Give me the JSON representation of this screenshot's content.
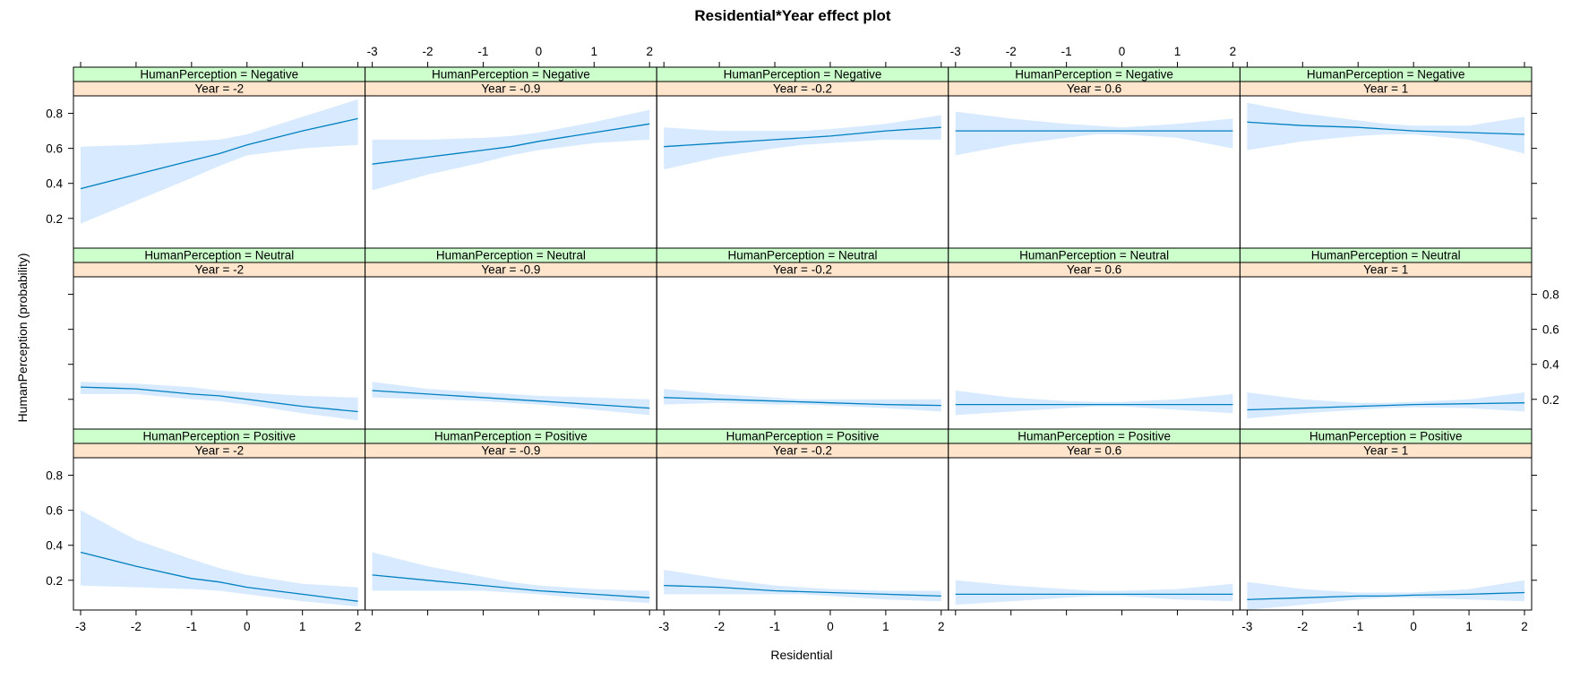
{
  "chart_data": {
    "type": "line",
    "title": "Residential*Year effect plot",
    "xlabel": "Residential",
    "ylabel": "HumanPerception (probability)",
    "xlim": [
      -3,
      2
    ],
    "ylim": [
      0.03,
      0.9
    ],
    "x_ticks": [
      "-3",
      "-2",
      "-1",
      "0",
      "1",
      "2"
    ],
    "y_ticks": [
      "0.2",
      "0.4",
      "0.6",
      "0.8"
    ],
    "x_values": [
      -3,
      -2,
      -1,
      -0.5,
      0,
      1,
      2
    ],
    "grid": false,
    "legend": "none",
    "colors": {
      "line": "#0080c0",
      "band": "#d8eaff",
      "strip_outer": "#ccffcc",
      "strip_inner": "#ffe5cc"
    },
    "row_strips": [
      "HumanPerception = Negative",
      "HumanPerception = Neutral",
      "HumanPerception = Positive"
    ],
    "col_strips": [
      "Year = -2",
      "Year = -0.9",
      "Year = -0.2",
      "Year = 0.6",
      "Year = 1"
    ],
    "panels": [
      {
        "row": 0,
        "col": 0,
        "fit": [
          0.37,
          0.45,
          0.53,
          0.57,
          0.62,
          0.7,
          0.77
        ],
        "lower": [
          0.17,
          0.3,
          0.43,
          0.5,
          0.56,
          0.6,
          0.62
        ],
        "upper": [
          0.61,
          0.62,
          0.64,
          0.65,
          0.68,
          0.78,
          0.88
        ]
      },
      {
        "row": 0,
        "col": 1,
        "fit": [
          0.51,
          0.55,
          0.59,
          0.61,
          0.64,
          0.69,
          0.74
        ],
        "lower": [
          0.36,
          0.45,
          0.52,
          0.56,
          0.59,
          0.63,
          0.65
        ],
        "upper": [
          0.65,
          0.65,
          0.66,
          0.67,
          0.69,
          0.75,
          0.82
        ]
      },
      {
        "row": 0,
        "col": 2,
        "fit": [
          0.61,
          0.63,
          0.65,
          0.66,
          0.67,
          0.7,
          0.72
        ],
        "lower": [
          0.48,
          0.55,
          0.6,
          0.62,
          0.63,
          0.65,
          0.65
        ],
        "upper": [
          0.72,
          0.7,
          0.7,
          0.7,
          0.71,
          0.74,
          0.79
        ]
      },
      {
        "row": 0,
        "col": 3,
        "fit": [
          0.7,
          0.7,
          0.7,
          0.7,
          0.7,
          0.7,
          0.7
        ],
        "lower": [
          0.56,
          0.62,
          0.66,
          0.68,
          0.68,
          0.66,
          0.6
        ],
        "upper": [
          0.81,
          0.77,
          0.74,
          0.73,
          0.72,
          0.74,
          0.77
        ]
      },
      {
        "row": 0,
        "col": 4,
        "fit": [
          0.75,
          0.73,
          0.72,
          0.71,
          0.7,
          0.69,
          0.68
        ],
        "lower": [
          0.59,
          0.64,
          0.67,
          0.68,
          0.68,
          0.65,
          0.57
        ],
        "upper": [
          0.86,
          0.8,
          0.76,
          0.74,
          0.73,
          0.73,
          0.78
        ]
      },
      {
        "row": 1,
        "col": 0,
        "fit": [
          0.27,
          0.26,
          0.23,
          0.22,
          0.2,
          0.16,
          0.13
        ],
        "lower": [
          0.23,
          0.23,
          0.2,
          0.19,
          0.17,
          0.12,
          0.08
        ],
        "upper": [
          0.3,
          0.29,
          0.27,
          0.25,
          0.24,
          0.22,
          0.21
        ]
      },
      {
        "row": 1,
        "col": 1,
        "fit": [
          0.25,
          0.23,
          0.21,
          0.2,
          0.19,
          0.17,
          0.15
        ],
        "lower": [
          0.21,
          0.2,
          0.19,
          0.18,
          0.17,
          0.14,
          0.11
        ],
        "upper": [
          0.3,
          0.26,
          0.24,
          0.23,
          0.22,
          0.21,
          0.2
        ]
      },
      {
        "row": 1,
        "col": 2,
        "fit": [
          0.21,
          0.2,
          0.19,
          0.185,
          0.18,
          0.17,
          0.165
        ],
        "lower": [
          0.17,
          0.18,
          0.17,
          0.17,
          0.165,
          0.15,
          0.13
        ],
        "upper": [
          0.26,
          0.23,
          0.21,
          0.2,
          0.2,
          0.2,
          0.2
        ]
      },
      {
        "row": 1,
        "col": 3,
        "fit": [
          0.17,
          0.17,
          0.17,
          0.17,
          0.17,
          0.17,
          0.17
        ],
        "lower": [
          0.11,
          0.13,
          0.15,
          0.16,
          0.16,
          0.14,
          0.12
        ],
        "upper": [
          0.25,
          0.21,
          0.19,
          0.185,
          0.185,
          0.2,
          0.23
        ]
      },
      {
        "row": 1,
        "col": 4,
        "fit": [
          0.14,
          0.15,
          0.16,
          0.165,
          0.17,
          0.175,
          0.18
        ],
        "lower": [
          0.09,
          0.12,
          0.14,
          0.15,
          0.155,
          0.15,
          0.13
        ],
        "upper": [
          0.24,
          0.2,
          0.18,
          0.18,
          0.185,
          0.2,
          0.24
        ]
      },
      {
        "row": 2,
        "col": 0,
        "fit": [
          0.36,
          0.28,
          0.21,
          0.19,
          0.16,
          0.12,
          0.08
        ],
        "lower": [
          0.17,
          0.16,
          0.15,
          0.14,
          0.12,
          0.08,
          0.05
        ],
        "upper": [
          0.6,
          0.43,
          0.32,
          0.27,
          0.23,
          0.18,
          0.16
        ]
      },
      {
        "row": 2,
        "col": 1,
        "fit": [
          0.23,
          0.2,
          0.17,
          0.155,
          0.14,
          0.12,
          0.1
        ],
        "lower": [
          0.14,
          0.14,
          0.14,
          0.13,
          0.12,
          0.09,
          0.07
        ],
        "upper": [
          0.36,
          0.28,
          0.22,
          0.19,
          0.17,
          0.15,
          0.14
        ]
      },
      {
        "row": 2,
        "col": 2,
        "fit": [
          0.17,
          0.16,
          0.14,
          0.135,
          0.13,
          0.12,
          0.11
        ],
        "lower": [
          0.12,
          0.12,
          0.12,
          0.12,
          0.11,
          0.09,
          0.08
        ],
        "upper": [
          0.26,
          0.21,
          0.17,
          0.16,
          0.15,
          0.14,
          0.14
        ]
      },
      {
        "row": 2,
        "col": 3,
        "fit": [
          0.12,
          0.12,
          0.12,
          0.12,
          0.12,
          0.12,
          0.12
        ],
        "lower": [
          0.06,
          0.08,
          0.1,
          0.11,
          0.11,
          0.09,
          0.08
        ],
        "upper": [
          0.2,
          0.17,
          0.15,
          0.14,
          0.14,
          0.15,
          0.18
        ]
      },
      {
        "row": 2,
        "col": 4,
        "fit": [
          0.09,
          0.1,
          0.11,
          0.11,
          0.115,
          0.12,
          0.13
        ],
        "lower": [
          0.03,
          0.06,
          0.09,
          0.1,
          0.1,
          0.09,
          0.08
        ],
        "upper": [
          0.19,
          0.15,
          0.13,
          0.13,
          0.13,
          0.15,
          0.2
        ]
      }
    ]
  }
}
